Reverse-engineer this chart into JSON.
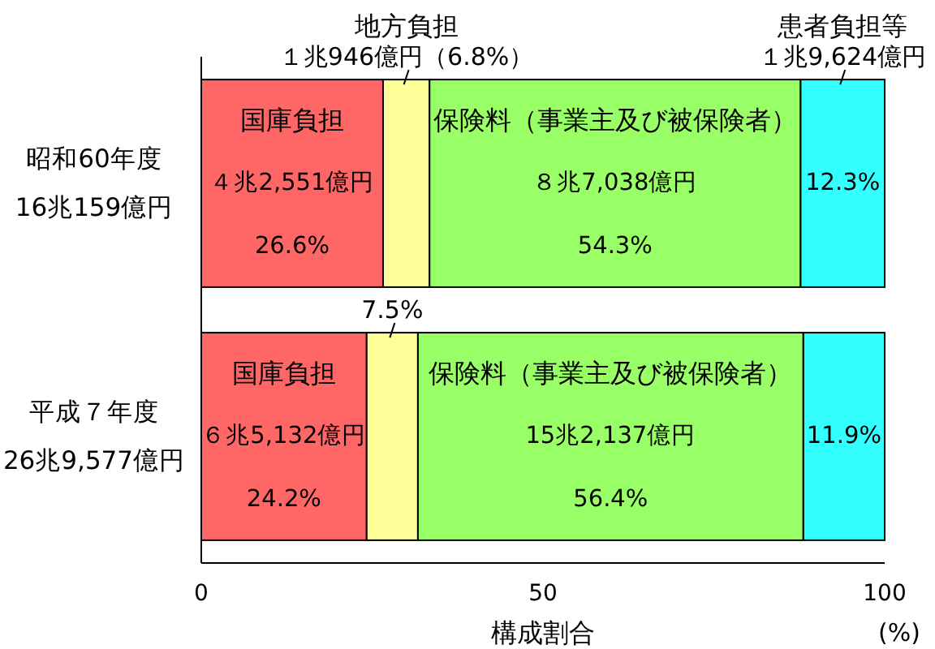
{
  "chart_data": {
    "type": "bar",
    "orientation": "horizontal",
    "stacked": true,
    "categories": [
      "昭和60年度\n16兆159億円",
      "平成７年度\n26兆9,577億円"
    ],
    "series": [
      {
        "name": "国庫負担",
        "color": "#ff6666",
        "values": [
          26.6,
          24.2
        ],
        "value_labels": [
          "４兆2,551億円\n26.6%",
          "６兆5,132億円\n24.2%"
        ]
      },
      {
        "name": "地方負担",
        "color": "#ffff99",
        "values": [
          6.8,
          7.5
        ],
        "value_labels": [
          "１兆946億円（6.8%）",
          "7.5%"
        ]
      },
      {
        "name": "保険料（事業主及び被保険者）",
        "color": "#99ff66",
        "values": [
          54.3,
          56.4
        ],
        "value_labels": [
          "８兆7,038億円\n54.3%",
          "15兆2,137億円\n56.4%"
        ]
      },
      {
        "name": "患者負担等",
        "color": "#33ffff",
        "values": [
          12.3,
          11.9
        ],
        "value_labels": [
          "12.3%",
          "11.9%"
        ]
      }
    ],
    "xlabel": "構成割合",
    "annotations": [
      "１兆9,624億円",
      "(%)"
    ],
    "xlim": [
      0,
      100
    ],
    "xticks": [
      0,
      50,
      100
    ]
  }
}
